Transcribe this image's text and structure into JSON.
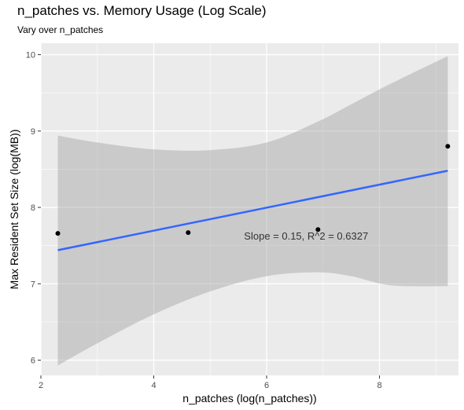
{
  "chart_data": {
    "type": "scatter",
    "title": "n_patches vs. Memory Usage (Log Scale)",
    "subtitle": "Vary over n_patches",
    "xlabel": "n_patches (log(n_patches))",
    "ylabel": "Max Resident Set Size (log(MB))",
    "xlim": [
      2,
      9.4
    ],
    "ylim": [
      5.8,
      10.15
    ],
    "x_ticks": [
      2,
      4,
      6,
      8
    ],
    "y_ticks": [
      6,
      7,
      8,
      9,
      10
    ],
    "grid": true,
    "points": [
      {
        "x": 2.3,
        "y": 7.66
      },
      {
        "x": 4.61,
        "y": 7.67
      },
      {
        "x": 6.91,
        "y": 7.71
      },
      {
        "x": 9.21,
        "y": 8.8
      }
    ],
    "fit_line": {
      "x": [
        2.3,
        9.21
      ],
      "y": [
        7.44,
        8.48
      ],
      "color": "#3366ff"
    },
    "confidence_band": {
      "x": [
        2.3,
        3.0,
        4.0,
        5.0,
        6.0,
        6.9,
        7.5,
        8.2,
        9.21
      ],
      "upper": [
        8.94,
        8.85,
        8.76,
        8.75,
        8.85,
        9.12,
        9.35,
        9.62,
        9.98
      ],
      "lower": [
        5.93,
        6.22,
        6.6,
        6.9,
        7.1,
        7.15,
        7.1,
        6.98,
        6.97
      ],
      "color": "#999999"
    },
    "annotation": {
      "text": "Slope = 0.15, R^2 = 0.6327",
      "x": 6.7,
      "y": 7.63
    },
    "colors": {
      "panel": "#ebebeb",
      "grid": "#ffffff",
      "point": "#000000"
    }
  }
}
